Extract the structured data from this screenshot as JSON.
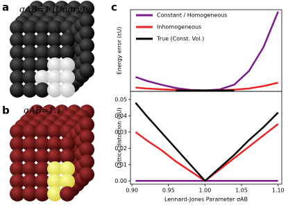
{
  "panels": [
    {
      "label": "a",
      "caption": "σAB=1 (Unary)"
    },
    {
      "label": "b",
      "caption": "σAB=1.1"
    }
  ],
  "panel_c_label": "c",
  "chart_data": [
    {
      "type": "line",
      "y_label": "Energy error (εU)",
      "x": [
        0.905,
        0.92,
        0.94,
        0.96,
        0.98,
        1.0,
        1.02,
        1.04,
        1.06,
        1.08,
        1.1
      ],
      "xlim": [
        0.898,
        1.105
      ],
      "ylim": [
        -1,
        84
      ],
      "legend": "upper-left",
      "series": [
        {
          "name": "Constant / Homogeneous",
          "color": "#7a1a8c",
          "values": [
            14,
            10,
            6,
            2.5,
            0.5,
            0,
            1,
            6,
            20,
            45,
            82
          ]
        },
        {
          "name": "Inhomogeneous",
          "color": "#ee2222",
          "values": [
            3,
            2,
            1.2,
            0.5,
            0.1,
            0,
            0.2,
            0.8,
            2,
            4.5,
            8
          ]
        },
        {
          "name": "True (Const. Vol.)",
          "color": "#000000",
          "values": [
            null,
            null,
            null,
            0,
            0,
            0,
            0,
            0,
            null,
            null,
            null
          ]
        }
      ]
    },
    {
      "type": "line",
      "y_label": "Lattice distortion (aU)",
      "x_label": "Lennard-Jones Parameter σAB",
      "x": [
        0.905,
        0.92,
        0.94,
        0.96,
        0.98,
        1.0,
        1.02,
        1.04,
        1.06,
        1.08,
        1.1
      ],
      "xlim": [
        0.898,
        1.105
      ],
      "ylim": [
        -0.002,
        0.055
      ],
      "xticks": [
        {
          "value": 0.9,
          "label": "0.90"
        },
        0.95,
        {
          "value": 1.0,
          "label": "1.00"
        },
        1.05,
        {
          "value": 1.1,
          "label": "1.10"
        }
      ],
      "yticks": [
        {
          "value": 0,
          "label": "0.00"
        },
        0.01,
        0.02,
        0.03,
        0.04,
        0.05
      ],
      "series": [
        {
          "color": "#7a1a8c",
          "values": [
            0,
            0,
            0,
            0,
            0,
            0,
            0,
            0,
            0,
            0,
            0
          ]
        },
        {
          "color": "#ee2222",
          "values": [
            0.03,
            0.025,
            0.019,
            0.012,
            0.006,
            0,
            0.007,
            0.014,
            0.021,
            0.028,
            0.035
          ]
        },
        {
          "color": "#000000",
          "values": [
            0.048,
            0.04,
            0.03,
            0.02,
            0.01,
            0,
            0.008,
            0.016,
            0.025,
            0.033,
            0.042
          ]
        }
      ]
    }
  ]
}
